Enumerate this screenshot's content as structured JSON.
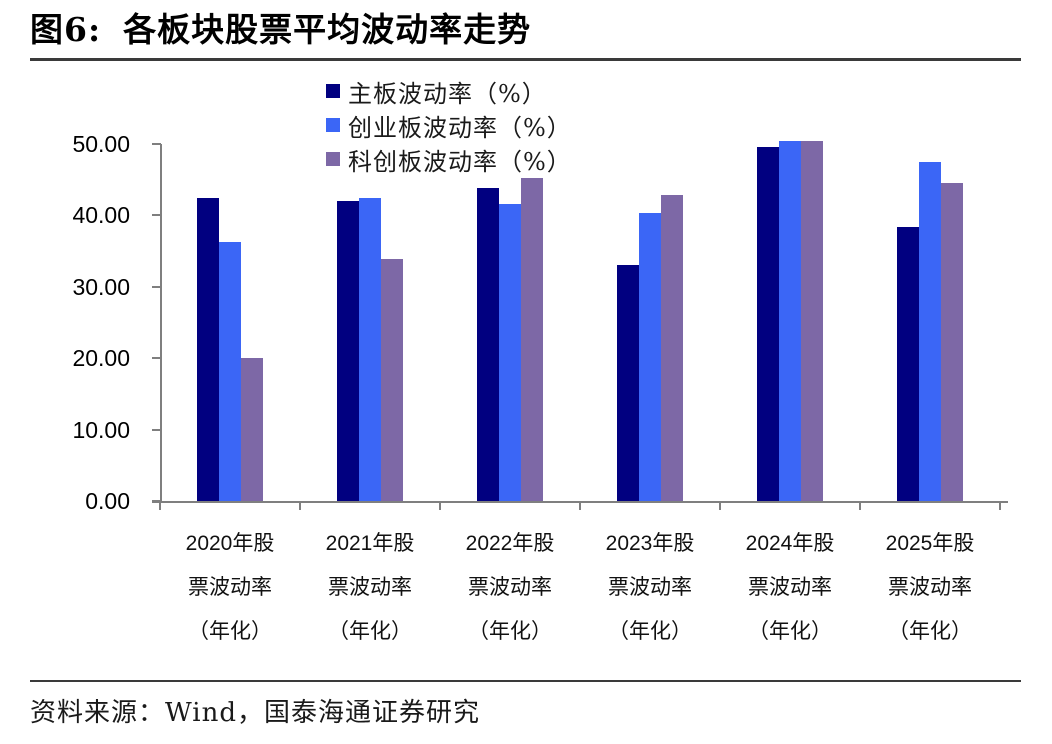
{
  "figure": {
    "title_prefix": "图6:",
    "title_text": "各板块股票平均波动率走势",
    "source": "资料来源：Wind，国泰海通证券研究"
  },
  "chart_data": {
    "type": "bar",
    "title": "图6: 各板块股票平均波动率走势",
    "categories": [
      "2020年股票波动率（年化）",
      "2021年股票波动率（年化）",
      "2022年股票波动率（年化）",
      "2023年股票波动率（年化）",
      "2024年股票波动率（年化）",
      "2025年股票波动率（年化）"
    ],
    "category_lines": [
      [
        "2020年股",
        "票波动率",
        "（年化）"
      ],
      [
        "2021年股",
        "票波动率",
        "（年化）"
      ],
      [
        "2022年股",
        "票波动率",
        "（年化）"
      ],
      [
        "2023年股",
        "票波动率",
        "（年化）"
      ],
      [
        "2024年股",
        "票波动率",
        "（年化）"
      ],
      [
        "2025年股",
        "票波动率",
        "（年化）"
      ]
    ],
    "series": [
      {
        "name": "主板波动率（%）",
        "color": "#010080",
        "values": [
          42.5,
          42.0,
          43.9,
          33.0,
          49.6,
          38.4
        ]
      },
      {
        "name": "创业板波动率（%）",
        "color": "#3B66F6",
        "values": [
          36.3,
          42.4,
          41.6,
          40.3,
          50.4,
          47.5
        ]
      },
      {
        "name": "科创板波动率（%）",
        "color": "#7D68A6",
        "values": [
          20.0,
          33.9,
          45.2,
          42.8,
          50.4,
          44.5
        ]
      }
    ],
    "ylim": [
      0,
      50
    ],
    "ytick_step": 10,
    "ytick_labels": [
      "0.00",
      "10.00",
      "20.00",
      "30.00",
      "40.00",
      "50.00"
    ],
    "ylabel": "",
    "xlabel": "",
    "legend_position": "top-center",
    "grid": false,
    "axis_color": "#7f7f7f"
  }
}
